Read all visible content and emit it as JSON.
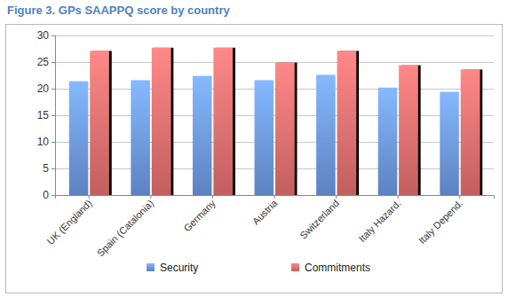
{
  "chart_data": {
    "type": "bar",
    "title": "Figure 3. GPs SAAPPQ score by country",
    "categories": [
      "UK (England)",
      "Spain (Catalonia)",
      "Germany",
      "Austria",
      "Switzerland",
      "Italy Hazard.",
      "Italy Depend."
    ],
    "series": [
      {
        "name": "Security",
        "color": "#6f9be6",
        "values": [
          21.4,
          21.6,
          22.4,
          21.6,
          22.6,
          20.2,
          19.4
        ]
      },
      {
        "name": "Commitments",
        "color": "#e87272",
        "values": [
          27.1,
          27.7,
          27.7,
          24.9,
          27.1,
          24.4,
          23.6
        ]
      }
    ],
    "ylim": [
      0,
      30
    ],
    "yticks": [
      0,
      5,
      10,
      15,
      20,
      25,
      30
    ],
    "grid": true,
    "legend": "bottom"
  }
}
